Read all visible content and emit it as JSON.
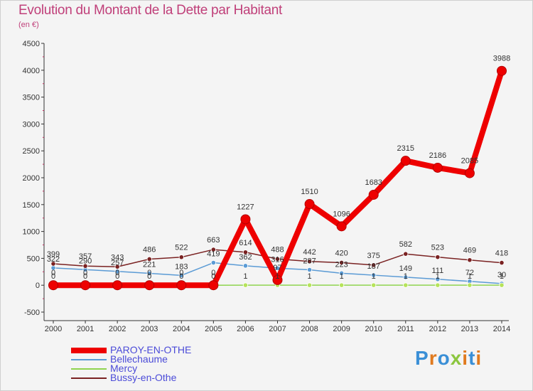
{
  "header": {
    "title": "Evolution du Montant de la Dette par Habitant",
    "subtitle": "(en €)"
  },
  "logo": {
    "text": "Proxiti",
    "colors": [
      "#3a8fd6",
      "#e07a1e",
      "#3a8fd6",
      "#8cc63f",
      "#e07a1e",
      "#3a8fd6",
      "#e07a1e"
    ]
  },
  "chart_data": {
    "type": "line",
    "x": [
      "2000",
      "2001",
      "2002",
      "2003",
      "2004",
      "2005",
      "2006",
      "2007",
      "2008",
      "2009",
      "2010",
      "2011",
      "2012",
      "2013",
      "2014"
    ],
    "ylim": [
      -500,
      4500
    ],
    "yticks": [
      -500,
      0,
      500,
      1000,
      1500,
      2000,
      2500,
      3000,
      3500,
      4000,
      4500
    ],
    "grid": false,
    "legend": "bottom-left",
    "series": [
      {
        "name": "PAROY-EN-OTHE",
        "color": "#ee0000",
        "values": [
          0,
          0,
          0,
          0,
          0,
          0,
          1227,
          97,
          1510,
          1096,
          1683,
          2315,
          2186,
          2085,
          3988
        ],
        "labels": [
          "0",
          "0",
          "0",
          "0",
          "0",
          "0",
          "1227",
          "97",
          "1510",
          "1096",
          "1683",
          "2315",
          "2186",
          "2085",
          "3988"
        ]
      },
      {
        "name": "Bellechaume",
        "color": "#5b9bd5",
        "values": [
          322,
          290,
          257,
          221,
          183,
          419,
          362,
          316,
          287,
          223,
          187,
          149,
          111,
          72,
          30
        ],
        "labels": [
          "322",
          "290",
          "257",
          "221",
          "183",
          "419",
          "362",
          "316",
          "287",
          "223",
          "187",
          "149",
          "111",
          "72",
          "30"
        ]
      },
      {
        "name": "Mercy",
        "color": "#8fd44f",
        "values": [
          0,
          0,
          0,
          0,
          0,
          0,
          1,
          1,
          1,
          1,
          1,
          1,
          1,
          1,
          1
        ],
        "labels": [
          "0",
          "0",
          "0",
          "0",
          "0",
          "0",
          "1",
          "1",
          "1",
          "1",
          "1",
          "1",
          "1",
          "1",
          "1"
        ]
      },
      {
        "name": "Bussy-en-Othe",
        "color": "#7a2222",
        "values": [
          399,
          357,
          343,
          486,
          522,
          663,
          614,
          488,
          442,
          420,
          375,
          582,
          523,
          469,
          418
        ],
        "labels": [
          "399",
          "357",
          "343",
          "486",
          "522",
          "663",
          "614",
          "488",
          "442",
          "420",
          "375",
          "582",
          "523",
          "469",
          "418"
        ]
      }
    ]
  }
}
